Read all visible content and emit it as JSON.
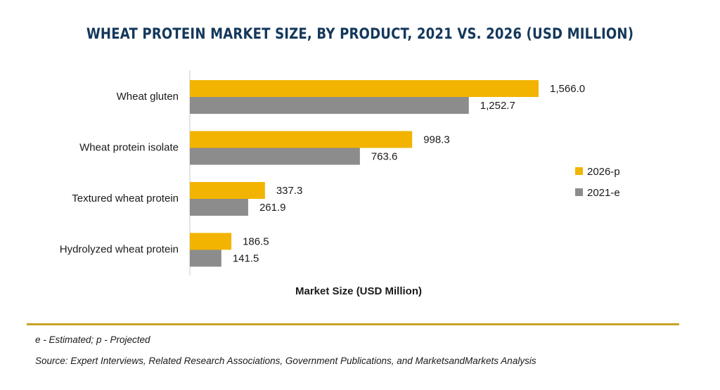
{
  "chart_data": {
    "type": "bar",
    "orientation": "horizontal",
    "title": "WHEAT PROTEIN MARKET SIZE, BY PRODUCT, 2021 VS. 2026 (USD MILLION)",
    "xlabel": "Market Size (USD Million)",
    "ylabel": "",
    "categories": [
      "Wheat gluten",
      "Wheat protein isolate",
      "Textured wheat protein",
      "Hydrolyzed wheat protein"
    ],
    "series": [
      {
        "name": "2026-p",
        "color": "#f2b400",
        "values": [
          1566.0,
          998.3,
          337.3,
          186.5
        ],
        "labels": [
          "1,566.0",
          "998.3",
          "337.3",
          "186.5"
        ]
      },
      {
        "name": "2021-e",
        "color": "#8c8c8c",
        "values": [
          1252.7,
          763.6,
          261.9,
          141.5
        ],
        "labels": [
          "1,252.7",
          "763.6",
          "261.9",
          "141.5"
        ]
      }
    ],
    "xlim": [
      0,
      1566.0
    ],
    "grid": false,
    "legend_position": "right"
  },
  "notes": {
    "estimated": "e - Estimated; p - Projected",
    "source": "Source: Expert Interviews, Related Research Associations, Government Publications, and MarketsandMarkets Analysis"
  }
}
